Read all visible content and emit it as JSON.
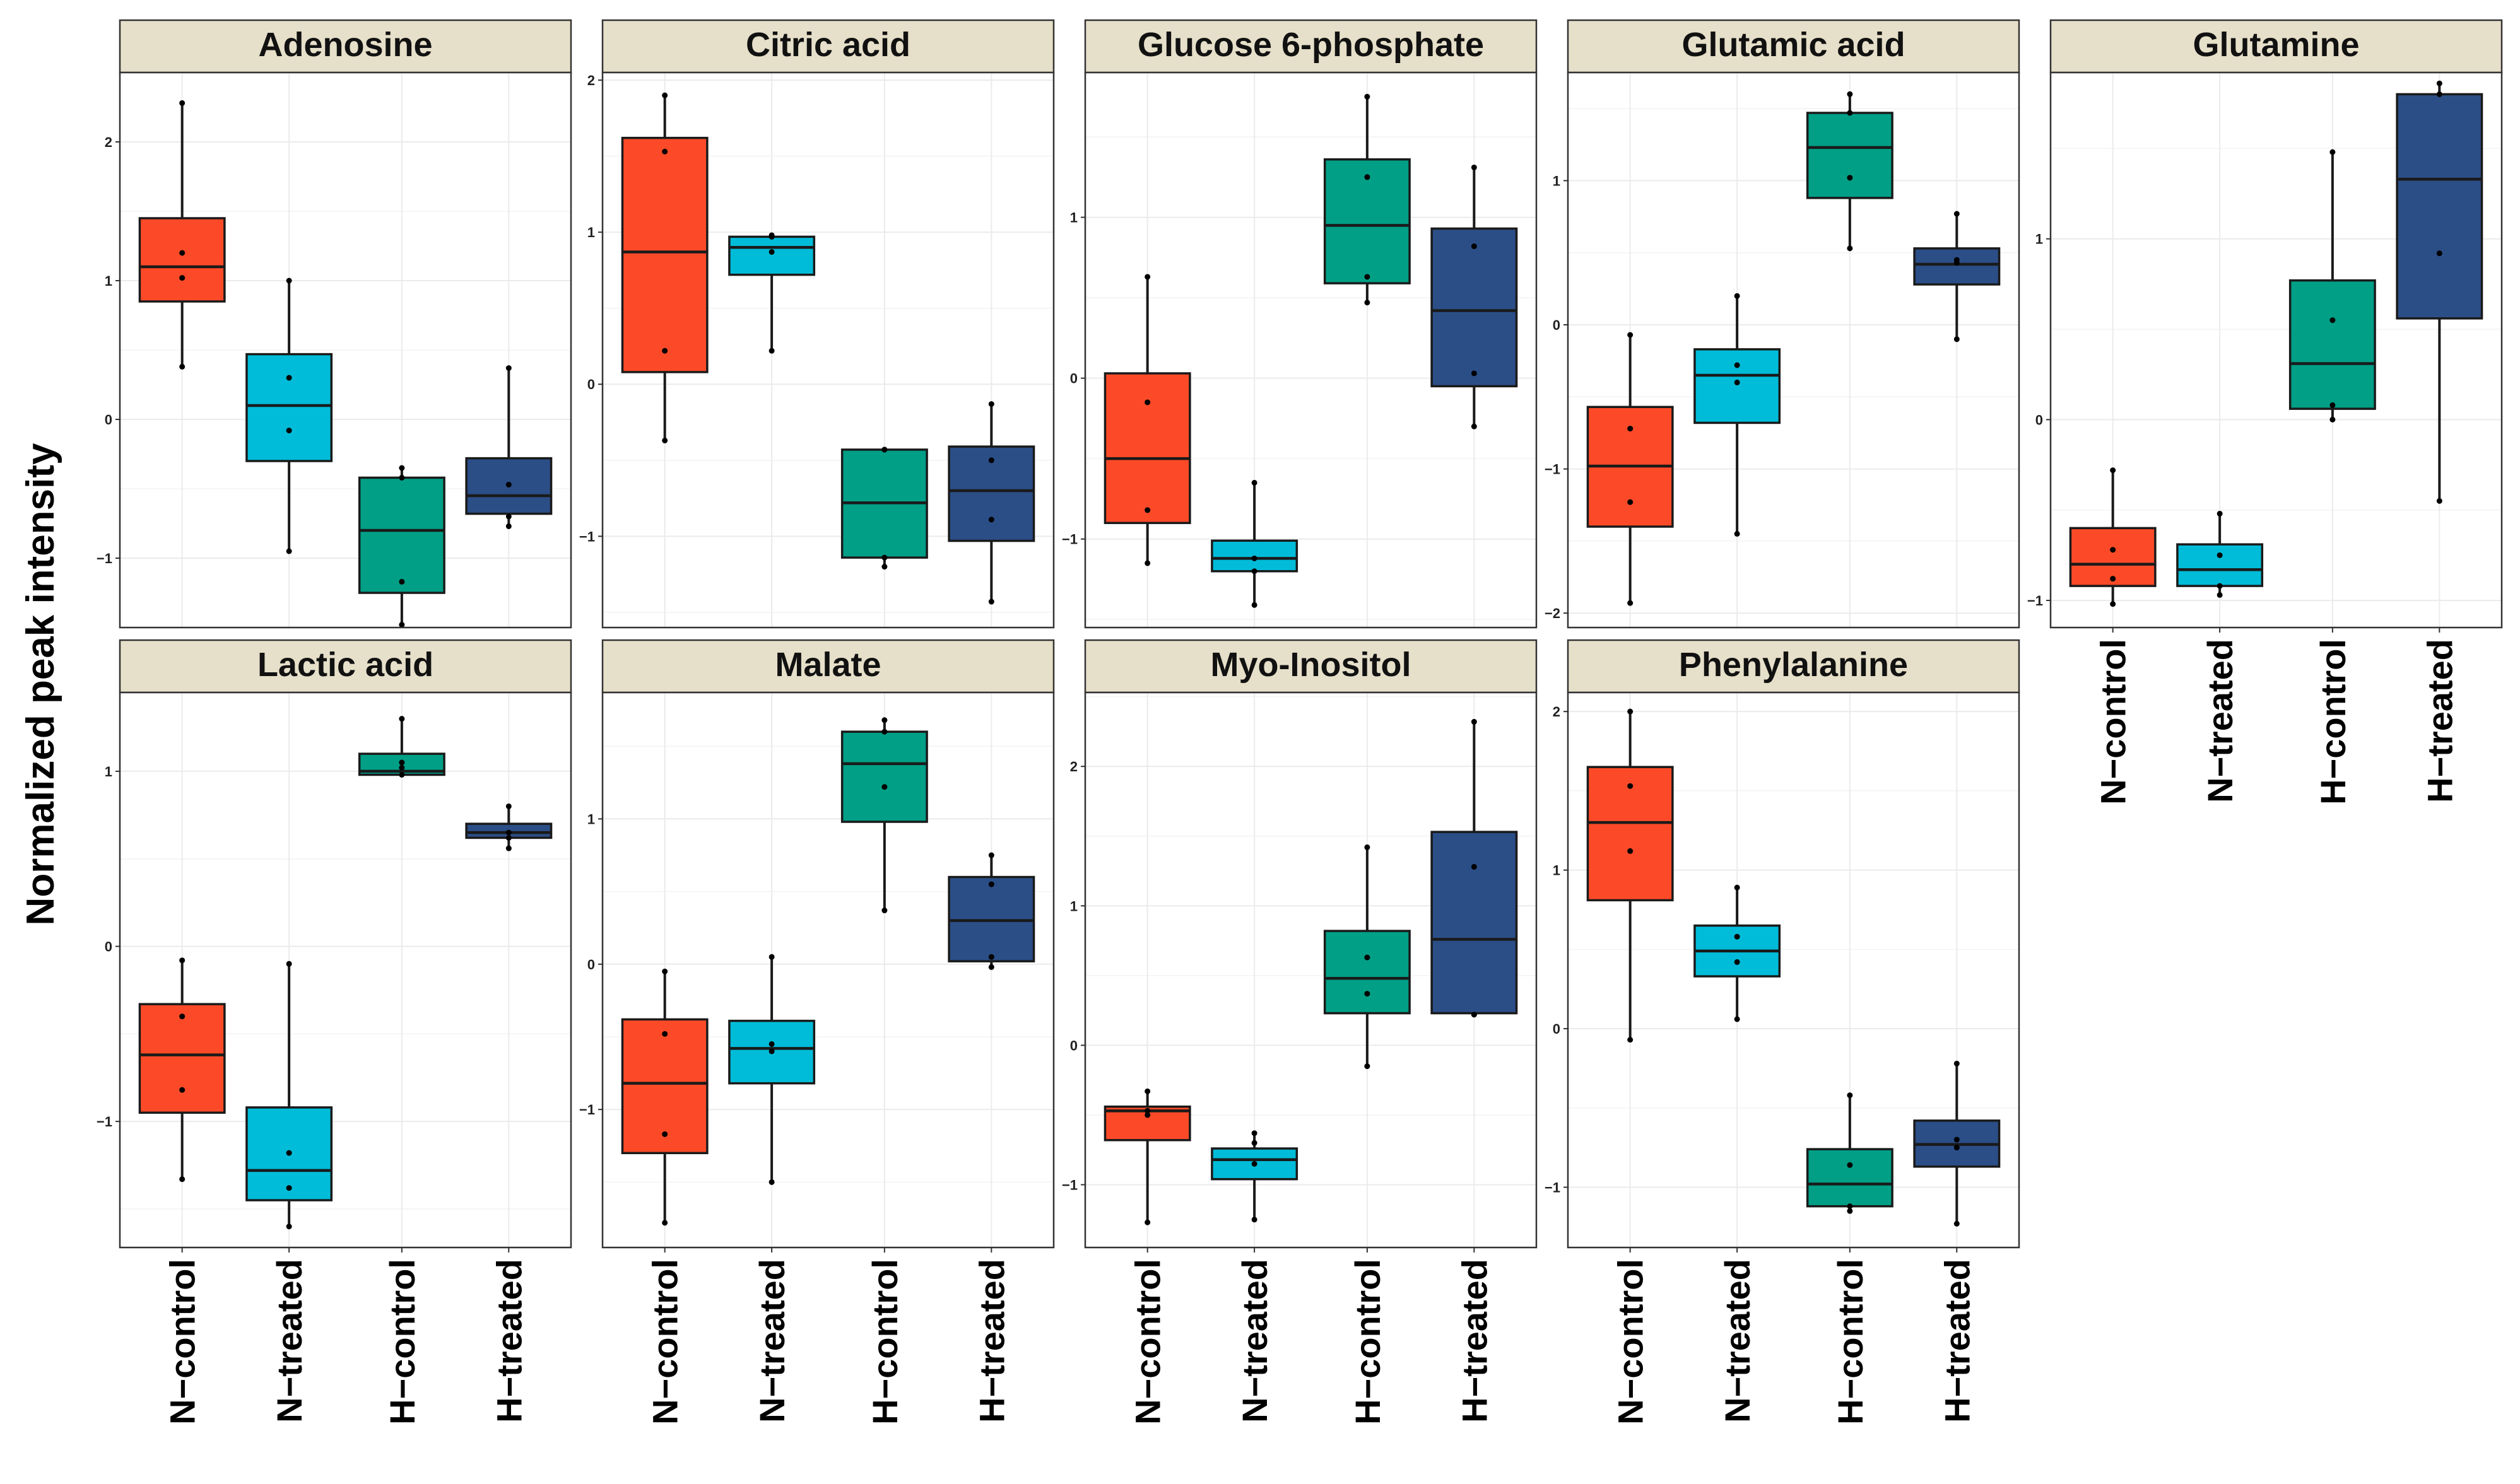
{
  "figure": {
    "ylabel": "Normalized peak intensity"
  },
  "colors": {
    "N-control": "#fc4a28",
    "N-treated": "#00bcd8",
    "H-control": "#009f86",
    "H-treated": "#2b4e87",
    "strip_fill": "#e6dfc9",
    "grid": "#ebebeb",
    "border": "#333333"
  },
  "chart_data": [
    {
      "type": "box",
      "title": "Adenosine",
      "categories": [
        "N−control",
        "N−treated",
        "H−control",
        "H−treated"
      ],
      "ylim": [
        -1.5,
        2.5
      ],
      "yticks": [
        -1,
        0,
        1,
        2
      ],
      "xticks_shown": false,
      "boxes": [
        {
          "q1": 0.85,
          "median": 1.1,
          "q3": 1.45,
          "whisker_low": 0.38,
          "whisker_high": 2.28,
          "points": [
            1.2,
            1.02,
            0.38,
            2.28
          ]
        },
        {
          "q1": -0.3,
          "median": 0.1,
          "q3": 0.47,
          "whisker_low": -0.95,
          "whisker_high": 1.0,
          "points": [
            0.3,
            -0.08,
            -0.95,
            1.0
          ]
        },
        {
          "q1": -1.25,
          "median": -0.8,
          "q3": -0.42,
          "whisker_low": -1.48,
          "whisker_high": -0.35,
          "points": [
            -1.17,
            -0.35,
            -1.48,
            -0.42
          ]
        },
        {
          "q1": -0.68,
          "median": -0.55,
          "q3": -0.28,
          "whisker_low": -0.77,
          "whisker_high": 0.37,
          "points": [
            -0.47,
            -0.7,
            -0.77,
            0.37
          ]
        }
      ]
    },
    {
      "type": "box",
      "title": "Citric acid",
      "categories": [
        "N−control",
        "N−treated",
        "H−control",
        "H−treated"
      ],
      "ylim": [
        -1.6,
        2.05
      ],
      "yticks": [
        -1,
        0,
        1,
        2
      ],
      "xticks_shown": false,
      "boxes": [
        {
          "q1": 0.08,
          "median": 0.87,
          "q3": 1.62,
          "whisker_low": -0.37,
          "whisker_high": 1.9,
          "points": [
            1.53,
            0.22,
            -0.37,
            1.9
          ]
        },
        {
          "q1": 0.72,
          "median": 0.9,
          "q3": 0.97,
          "whisker_low": 0.22,
          "whisker_high": 0.98,
          "points": [
            0.87,
            0.22,
            0.97,
            0.98
          ]
        },
        {
          "q1": -1.14,
          "median": -0.78,
          "q3": -0.43,
          "whisker_low": -1.2,
          "whisker_high": -0.43,
          "points": [
            -1.14,
            -1.2,
            -0.43,
            -0.43
          ]
        },
        {
          "q1": -1.03,
          "median": -0.7,
          "q3": -0.41,
          "whisker_low": -1.43,
          "whisker_high": -0.13,
          "points": [
            -0.89,
            -0.5,
            -1.43,
            -0.13
          ]
        }
      ]
    },
    {
      "type": "box",
      "title": "Glucose 6-phosphate",
      "categories": [
        "N−control",
        "N−treated",
        "H−control",
        "H−treated"
      ],
      "ylim": [
        -1.55,
        1.9
      ],
      "yticks": [
        -1,
        0,
        1
      ],
      "xticks_shown": false,
      "boxes": [
        {
          "q1": -0.9,
          "median": -0.5,
          "q3": 0.03,
          "whisker_low": -1.15,
          "whisker_high": 0.63,
          "points": [
            -0.15,
            -0.82,
            -1.15,
            0.63
          ]
        },
        {
          "q1": -1.2,
          "median": -1.12,
          "q3": -1.01,
          "whisker_low": -1.41,
          "whisker_high": -0.65,
          "points": [
            -1.12,
            -0.65,
            -1.41,
            -1.2
          ]
        },
        {
          "q1": 0.59,
          "median": 0.95,
          "q3": 1.36,
          "whisker_low": 0.47,
          "whisker_high": 1.75,
          "points": [
            1.25,
            0.63,
            0.47,
            1.75
          ]
        },
        {
          "q1": -0.05,
          "median": 0.42,
          "q3": 0.93,
          "whisker_low": -0.3,
          "whisker_high": 1.31,
          "points": [
            0.82,
            0.03,
            -0.3,
            1.31
          ]
        }
      ]
    },
    {
      "type": "box",
      "title": "Glutamic acid",
      "categories": [
        "N−control",
        "N−treated",
        "H−control",
        "H−treated"
      ],
      "ylim": [
        -2.1,
        1.75
      ],
      "yticks": [
        -2,
        -1,
        0,
        1
      ],
      "xticks_shown": false,
      "boxes": [
        {
          "q1": -1.4,
          "median": -0.98,
          "q3": -0.57,
          "whisker_low": -1.93,
          "whisker_high": -0.07,
          "points": [
            -0.72,
            -1.23,
            -1.93,
            -0.07
          ]
        },
        {
          "q1": -0.68,
          "median": -0.35,
          "q3": -0.17,
          "whisker_low": -1.45,
          "whisker_high": 0.2,
          "points": [
            -0.28,
            -0.4,
            -1.45,
            0.2
          ]
        },
        {
          "q1": 0.88,
          "median": 1.23,
          "q3": 1.47,
          "whisker_low": 0.53,
          "whisker_high": 1.6,
          "points": [
            1.47,
            1.02,
            0.53,
            1.6
          ]
        },
        {
          "q1": 0.28,
          "median": 0.42,
          "q3": 0.53,
          "whisker_low": -0.1,
          "whisker_high": 0.77,
          "points": [
            0.45,
            0.43,
            -0.1,
            0.77
          ]
        }
      ]
    },
    {
      "type": "box",
      "title": "Glutamine",
      "categories": [
        "N−control",
        "N−treated",
        "H−control",
        "H−treated"
      ],
      "ylim": [
        -1.15,
        1.92
      ],
      "yticks": [
        -1,
        0,
        1
      ],
      "xticks_shown": true,
      "boxes": [
        {
          "q1": -0.92,
          "median": -0.8,
          "q3": -0.6,
          "whisker_low": -1.02,
          "whisker_high": -0.28,
          "points": [
            -0.72,
            -0.88,
            -1.02,
            -0.28
          ]
        },
        {
          "q1": -0.92,
          "median": -0.83,
          "q3": -0.69,
          "whisker_low": -0.97,
          "whisker_high": -0.52,
          "points": [
            -0.75,
            -0.92,
            -0.97,
            -0.52
          ]
        },
        {
          "q1": 0.06,
          "median": 0.31,
          "q3": 0.77,
          "whisker_low": 0.0,
          "whisker_high": 1.48,
          "points": [
            0.55,
            0.08,
            0.0,
            1.48
          ]
        },
        {
          "q1": 0.56,
          "median": 1.33,
          "q3": 1.8,
          "whisker_low": -0.45,
          "whisker_high": 1.86,
          "points": [
            0.92,
            1.8,
            -0.45,
            1.86
          ]
        }
      ]
    },
    {
      "type": "box",
      "title": "Lactic acid",
      "categories": [
        "N−control",
        "N−treated",
        "H−control",
        "H−treated"
      ],
      "ylim": [
        -1.72,
        1.45
      ],
      "yticks": [
        -1,
        0,
        1
      ],
      "xticks_shown": true,
      "boxes": [
        {
          "q1": -0.95,
          "median": -0.62,
          "q3": -0.33,
          "whisker_low": -1.33,
          "whisker_high": -0.08,
          "points": [
            -0.4,
            -0.82,
            -1.33,
            -0.08
          ]
        },
        {
          "q1": -1.45,
          "median": -1.28,
          "q3": -0.92,
          "whisker_low": -1.6,
          "whisker_high": -0.1,
          "points": [
            -1.18,
            -1.38,
            -1.6,
            -0.1
          ]
        },
        {
          "q1": 0.98,
          "median": 1.0,
          "q3": 1.1,
          "whisker_low": 0.98,
          "whisker_high": 1.3,
          "points": [
            1.02,
            1.05,
            0.98,
            1.3
          ]
        },
        {
          "q1": 0.62,
          "median": 0.65,
          "q3": 0.7,
          "whisker_low": 0.56,
          "whisker_high": 0.8,
          "points": [
            0.65,
            0.62,
            0.56,
            0.8
          ]
        }
      ]
    },
    {
      "type": "box",
      "title": "Malate",
      "categories": [
        "N−control",
        "N−treated",
        "H−control",
        "H−treated"
      ],
      "ylim": [
        -1.95,
        1.87
      ],
      "yticks": [
        -1,
        0,
        1
      ],
      "xticks_shown": true,
      "boxes": [
        {
          "q1": -1.3,
          "median": -0.82,
          "q3": -0.38,
          "whisker_low": -1.78,
          "whisker_high": -0.05,
          "points": [
            -0.48,
            -1.17,
            -1.78,
            -0.05
          ]
        },
        {
          "q1": -0.82,
          "median": -0.58,
          "q3": -0.39,
          "whisker_low": -1.5,
          "whisker_high": 0.05,
          "points": [
            -0.55,
            -0.6,
            -1.5,
            0.05
          ]
        },
        {
          "q1": 0.98,
          "median": 1.38,
          "q3": 1.6,
          "whisker_low": 0.37,
          "whisker_high": 1.68,
          "points": [
            1.22,
            1.6,
            0.37,
            1.68
          ]
        },
        {
          "q1": 0.02,
          "median": 0.3,
          "q3": 0.6,
          "whisker_low": -0.02,
          "whisker_high": 0.75,
          "points": [
            0.55,
            0.05,
            -0.02,
            0.75
          ]
        }
      ]
    },
    {
      "type": "box",
      "title": "Myo-Inositol",
      "categories": [
        "N−control",
        "N−treated",
        "H−control",
        "H−treated"
      ],
      "ylim": [
        -1.45,
        2.53
      ],
      "yticks": [
        -1,
        0,
        1,
        2
      ],
      "xticks_shown": true,
      "boxes": [
        {
          "q1": -0.68,
          "median": -0.47,
          "q3": -0.44,
          "whisker_low": -1.27,
          "whisker_high": -0.33,
          "points": [
            -0.47,
            -0.5,
            -1.27,
            -0.33
          ]
        },
        {
          "q1": -0.96,
          "median": -0.82,
          "q3": -0.74,
          "whisker_low": -1.25,
          "whisker_high": -0.63,
          "points": [
            -0.85,
            -0.7,
            -1.25,
            -0.63
          ]
        },
        {
          "q1": 0.23,
          "median": 0.48,
          "q3": 0.82,
          "whisker_low": -0.15,
          "whisker_high": 1.42,
          "points": [
            0.63,
            0.37,
            -0.15,
            1.42
          ]
        },
        {
          "q1": 0.23,
          "median": 0.76,
          "q3": 1.53,
          "whisker_low": 0.22,
          "whisker_high": 2.32,
          "points": [
            1.28,
            0.22,
            0.22,
            2.32
          ]
        }
      ]
    },
    {
      "type": "box",
      "title": "Phenylalanine",
      "categories": [
        "N−control",
        "N−treated",
        "H−control",
        "H−treated"
      ],
      "ylim": [
        -1.38,
        2.12
      ],
      "yticks": [
        -1,
        0,
        1,
        2
      ],
      "xticks_shown": true,
      "boxes": [
        {
          "q1": 0.81,
          "median": 1.3,
          "q3": 1.65,
          "whisker_low": -0.07,
          "whisker_high": 2.0,
          "points": [
            1.53,
            1.12,
            -0.07,
            2.0
          ]
        },
        {
          "q1": 0.33,
          "median": 0.49,
          "q3": 0.65,
          "whisker_low": 0.06,
          "whisker_high": 0.89,
          "points": [
            0.58,
            0.42,
            0.06,
            0.89
          ]
        },
        {
          "q1": -1.12,
          "median": -0.98,
          "q3": -0.76,
          "whisker_low": -1.15,
          "whisker_high": -0.42,
          "points": [
            -0.86,
            -1.12,
            -1.15,
            -0.42
          ]
        },
        {
          "q1": -0.87,
          "median": -0.73,
          "q3": -0.58,
          "whisker_low": -1.23,
          "whisker_high": -0.22,
          "points": [
            -0.7,
            -0.75,
            -1.23,
            -0.22
          ]
        }
      ]
    }
  ]
}
